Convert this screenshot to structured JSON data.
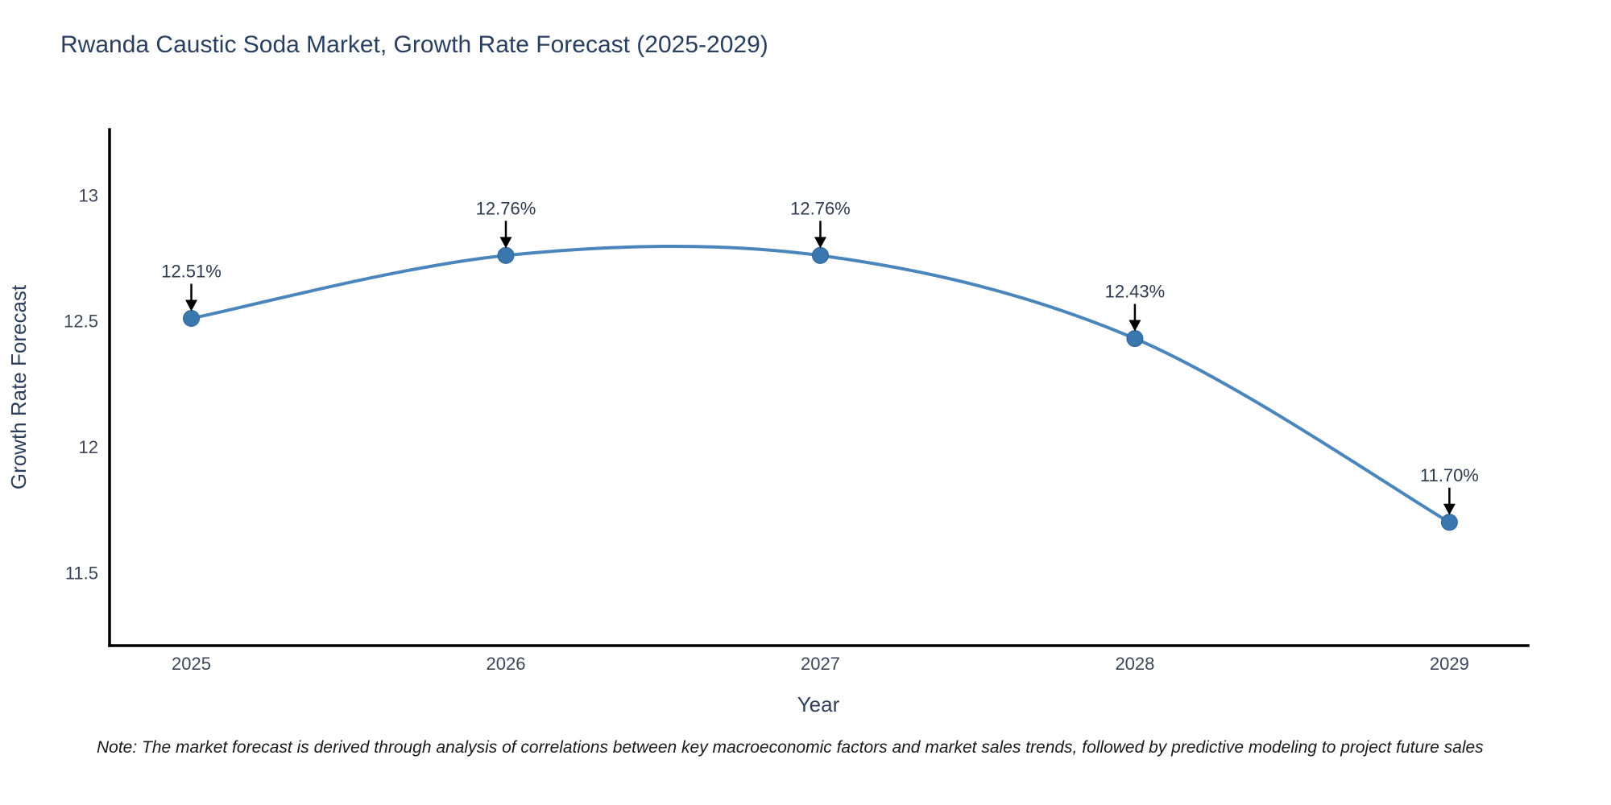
{
  "title": "Rwanda Caustic Soda Market, Growth Rate Forecast (2025-2029)",
  "note": "Note: The market forecast is derived through analysis of correlations between key macroeconomic factors and market sales trends, followed by predictive modeling to project future sales",
  "chart_data": {
    "type": "line",
    "title": "Rwanda Caustic Soda Market, Growth Rate Forecast (2025-2029)",
    "x": [
      2025,
      2026,
      2027,
      2028,
      2029
    ],
    "series": [
      {
        "name": "Growth Rate Forecast",
        "values": [
          12.51,
          12.76,
          12.76,
          12.43,
          11.7
        ]
      }
    ],
    "point_labels": [
      "12.51%",
      "12.76%",
      "12.76%",
      "12.43%",
      "11.70%"
    ],
    "xlabel": "Year",
    "ylabel": "Growth Rate Forecast",
    "x_tick_labels": [
      "2025",
      "2026",
      "2027",
      "2028",
      "2029"
    ],
    "y_ticks": [
      11.5,
      12,
      12.5,
      13
    ],
    "y_tick_labels": [
      "11.5",
      "12",
      "12.5",
      "13"
    ],
    "x_range": [
      2024.74,
      2029.25
    ],
    "y_range": [
      11.21,
      13.26
    ],
    "line_shape": "spline",
    "grid": false,
    "legend": "none",
    "annotation_style": "label-with-down-arrow",
    "colors": {
      "line": "#4a86bb",
      "marker": "#3a77af",
      "marker_edge": "#2f6396",
      "annotation_arrow": "#000000",
      "axis_line": "#000000",
      "title_text": "#2a3f5f",
      "tick_text": "#3d4656",
      "note_text": "#1a1a1a",
      "background": "#ffffff"
    }
  }
}
